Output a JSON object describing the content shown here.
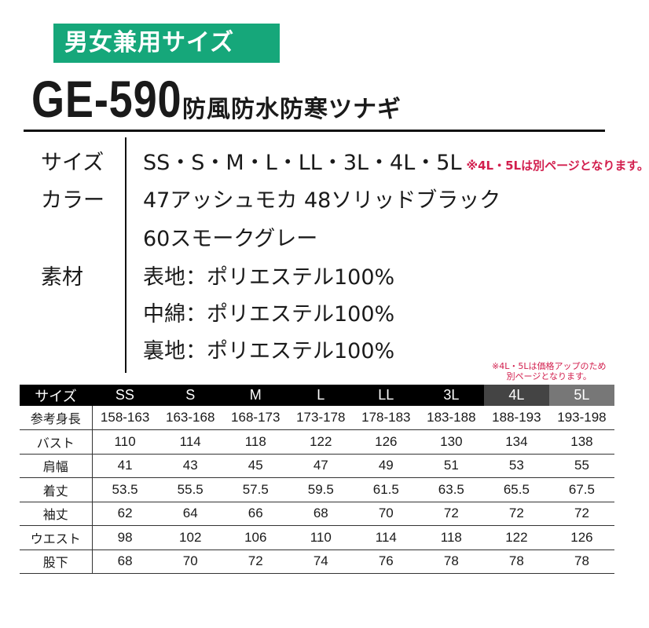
{
  "badge": "男女兼用サイズ",
  "model": "GE-590",
  "model_desc": "防風防水防寒ツナギ",
  "specs": {
    "size_label": "サイズ",
    "size_value": "SS・S・M・L・LL・3L・4L・5L",
    "size_note": "※4L・5Lは別ページとなります。",
    "color_label": "カラー",
    "color_value1": "47アッシュモカ 48ソリッドブラック",
    "color_value2": "60スモークグレー",
    "material_label": "素材",
    "material1": "表地：ポリエステル100%",
    "material2": "中綿：ポリエステル100%",
    "material3": "裏地：ポリエステル100%"
  },
  "table_note": [
    "※4L・5Lは価格アップのため",
    "別ページとなります。"
  ],
  "table": {
    "headers": [
      "サイズ",
      "SS",
      "S",
      "M",
      "L",
      "LL",
      "3L",
      "4L",
      "5L"
    ],
    "header_colors": {
      "default": "#000000",
      "4L": "#444444",
      "5L": "#777777"
    },
    "rows": [
      [
        "参考身長",
        "158-163",
        "163-168",
        "168-173",
        "173-178",
        "178-183",
        "183-188",
        "188-193",
        "193-198"
      ],
      [
        "バスト",
        "110",
        "114",
        "118",
        "122",
        "126",
        "130",
        "134",
        "138"
      ],
      [
        "肩幅",
        "41",
        "43",
        "45",
        "47",
        "49",
        "51",
        "53",
        "55"
      ],
      [
        "着丈",
        "53.5",
        "55.5",
        "57.5",
        "59.5",
        "61.5",
        "63.5",
        "65.5",
        "67.5"
      ],
      [
        "袖丈",
        "62",
        "64",
        "66",
        "68",
        "70",
        "72",
        "72",
        "72"
      ],
      [
        "ウエスト",
        "98",
        "102",
        "106",
        "110",
        "114",
        "118",
        "122",
        "126"
      ],
      [
        "股下",
        "68",
        "70",
        "72",
        "74",
        "76",
        "78",
        "78",
        "78"
      ]
    ]
  },
  "accent": "#16a77a"
}
